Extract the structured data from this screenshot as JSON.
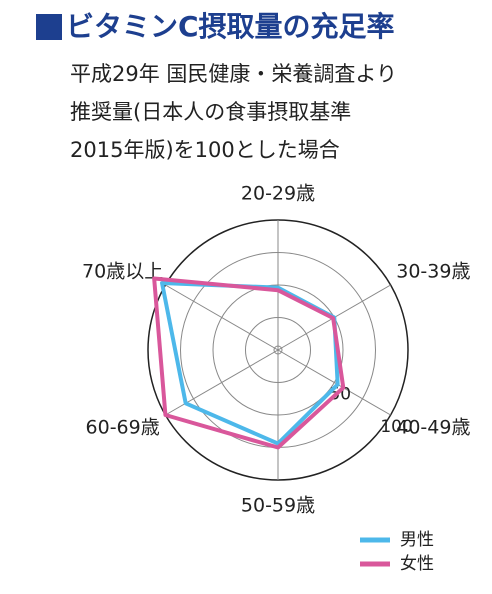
{
  "chart_data": {
    "type": "radar",
    "title": "ビタミンC摂取量の充足率",
    "subtitle": [
      "平成29年 国民健康・栄養調査より",
      "推奨量(日本人の食事摂取基準",
      "2015年版)を100とした場合"
    ],
    "categories": [
      "20-29歳",
      "30-39歳",
      "40-49歳",
      "50-59歳",
      "60-69歳",
      "70歳以上"
    ],
    "series": [
      {
        "name": "男性",
        "color": "#4db8ea",
        "values": [
          48,
          50,
          53,
          72,
          82,
          103
        ]
      },
      {
        "name": "女性",
        "color": "#d9579b",
        "values": [
          46,
          49,
          58,
          75,
          100,
          110
        ]
      }
    ],
    "rlim": [
      0,
      100
    ],
    "rticks": [
      50,
      100
    ],
    "rgrid": [
      25,
      50,
      75,
      100
    ],
    "legend": "bottom-right"
  }
}
